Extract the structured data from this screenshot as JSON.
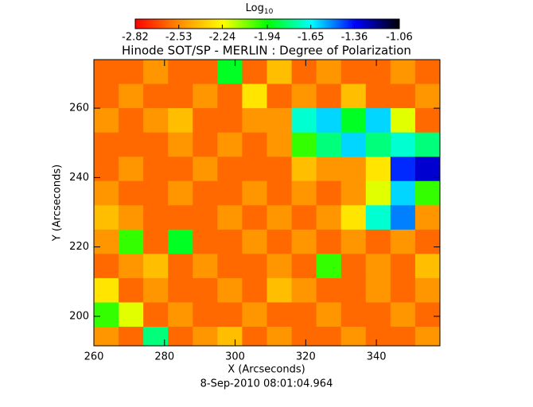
{
  "chart_data": {
    "type": "heatmap",
    "title": "Hinode SOT/SP - MERLIN : Degree of Polarization",
    "xlabel": "X (Arcseconds)",
    "ylabel": "Y (Arcseconds)",
    "footer": "8-Sep-2010 08:01:04.964",
    "colorbar_label": "Log",
    "colorbar_label_subscript": "10",
    "clim": [
      -2.82,
      -1.06
    ],
    "cticks": [
      -2.82,
      -2.53,
      -2.24,
      -1.94,
      -1.65,
      -1.36,
      -1.06
    ],
    "colormap": [
      "#ff0000",
      "#ff8c00",
      "#ffff00",
      "#00ff00",
      "#00ffff",
      "#0000ff",
      "#000000"
    ],
    "xlim": [
      260,
      358
    ],
    "ylim": [
      191.5,
      274
    ],
    "xticks": [
      260,
      280,
      300,
      320,
      340
    ],
    "yticks": [
      200,
      220,
      240,
      260
    ],
    "x": [
      263.5,
      270.5,
      277.5,
      284.5,
      291.5,
      298.5,
      305.5,
      312.5,
      319.5,
      326.5,
      333.5,
      340.5,
      347.5,
      354.5
    ],
    "y": [
      270.5,
      263.5,
      256.5,
      249.5,
      242.5,
      235.5,
      228.5,
      221.5,
      214.5,
      207.5,
      200.5,
      193.5
    ],
    "z": [
      [
        -2.6,
        -2.6,
        -2.5,
        -2.6,
        -2.6,
        -1.9,
        -2.6,
        -2.4,
        -2.6,
        -2.5,
        -2.6,
        -2.6,
        -2.5,
        -2.6
      ],
      [
        -2.6,
        -2.5,
        -2.6,
        -2.6,
        -2.5,
        -2.6,
        -2.3,
        -2.6,
        -2.5,
        -2.6,
        -2.4,
        -2.6,
        -2.6,
        -2.5
      ],
      [
        -2.5,
        -2.6,
        -2.5,
        -2.4,
        -2.6,
        -2.6,
        -2.5,
        -2.5,
        -1.7,
        -1.6,
        -1.9,
        -1.6,
        -2.2,
        -2.6
      ],
      [
        -2.6,
        -2.6,
        -2.6,
        -2.5,
        -2.6,
        -2.5,
        -2.6,
        -2.5,
        -2.0,
        -1.8,
        -1.6,
        -1.8,
        -1.7,
        -1.8
      ],
      [
        -2.6,
        -2.5,
        -2.6,
        -2.6,
        -2.5,
        -2.6,
        -2.6,
        -2.6,
        -2.4,
        -2.5,
        -2.5,
        -2.3,
        -1.4,
        -1.3
      ],
      [
        -2.5,
        -2.6,
        -2.6,
        -2.5,
        -2.6,
        -2.6,
        -2.5,
        -2.6,
        -2.5,
        -2.6,
        -2.5,
        -2.2,
        -1.6,
        -2.0
      ],
      [
        -2.4,
        -2.5,
        -2.6,
        -2.6,
        -2.6,
        -2.5,
        -2.6,
        -2.5,
        -2.6,
        -2.5,
        -2.3,
        -1.7,
        -1.5,
        -2.5
      ],
      [
        -2.5,
        -2.0,
        -2.6,
        -1.9,
        -2.6,
        -2.6,
        -2.5,
        -2.6,
        -2.5,
        -2.6,
        -2.5,
        -2.6,
        -2.5,
        -2.6
      ],
      [
        -2.6,
        -2.5,
        -2.4,
        -2.6,
        -2.5,
        -2.6,
        -2.6,
        -2.5,
        -2.6,
        -2.0,
        -2.6,
        -2.5,
        -2.6,
        -2.4
      ],
      [
        -2.3,
        -2.6,
        -2.5,
        -2.6,
        -2.6,
        -2.5,
        -2.6,
        -2.4,
        -2.5,
        -2.6,
        -2.6,
        -2.5,
        -2.6,
        -2.5
      ],
      [
        -2.0,
        -2.2,
        -2.6,
        -2.5,
        -2.6,
        -2.6,
        -2.5,
        -2.6,
        -2.6,
        -2.5,
        -2.6,
        -2.6,
        -2.5,
        -2.6
      ],
      [
        -2.5,
        -2.6,
        -1.8,
        -2.6,
        -2.5,
        -2.4,
        -2.6,
        -2.5,
        -2.6,
        -2.6,
        -2.5,
        -2.6,
        -2.6,
        -2.5
      ]
    ]
  }
}
